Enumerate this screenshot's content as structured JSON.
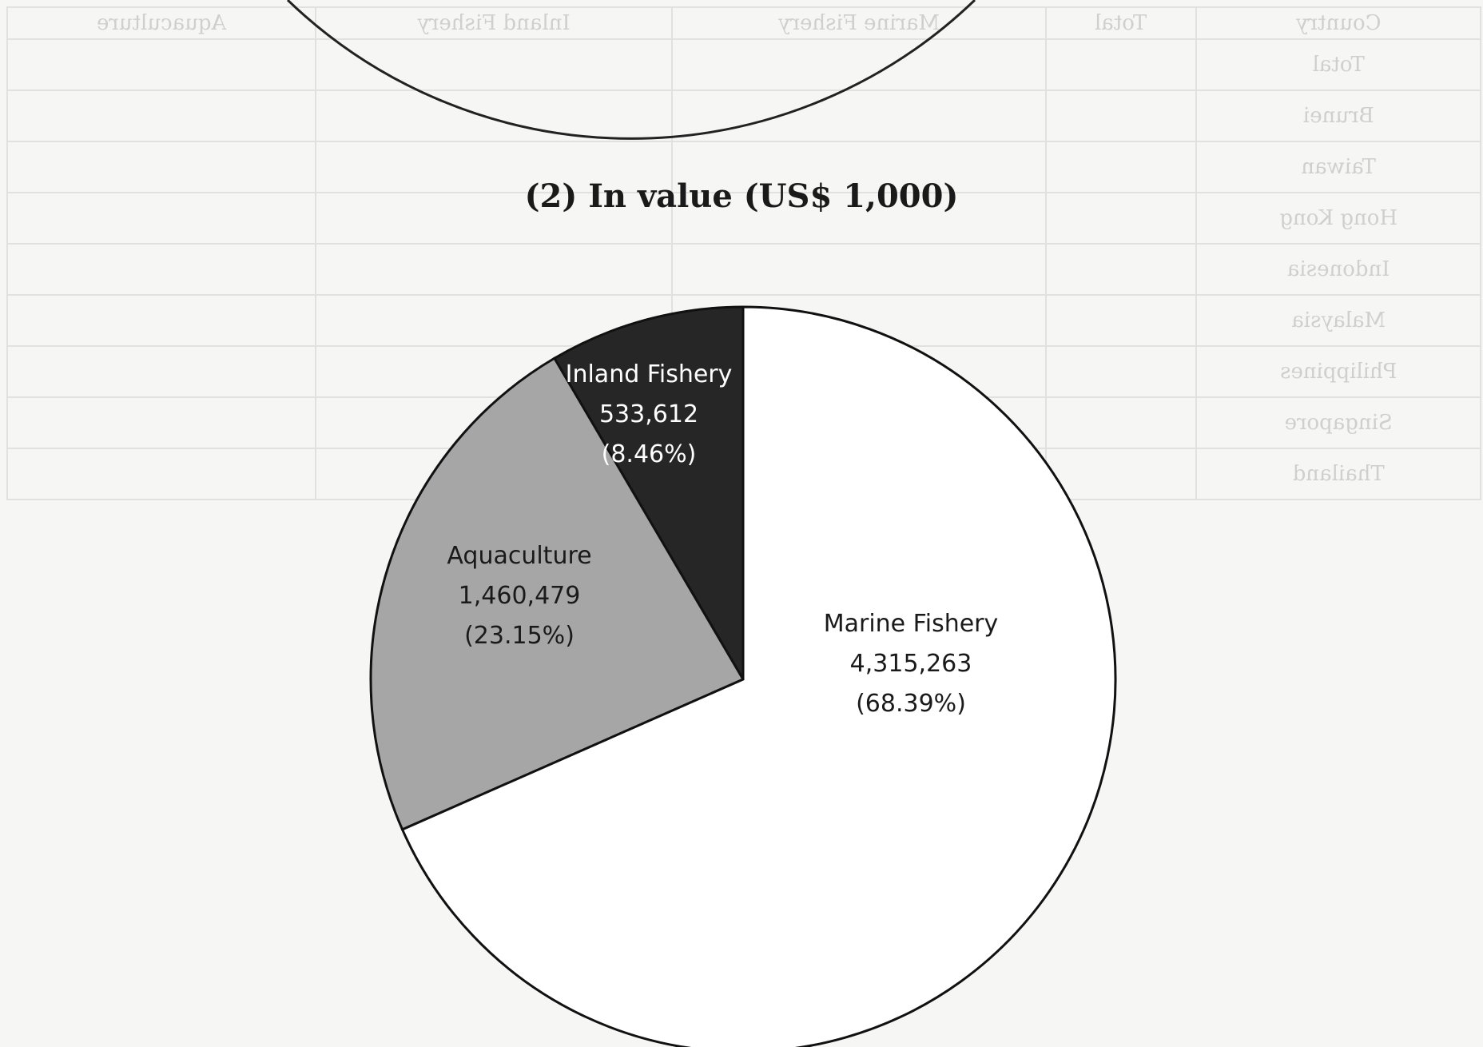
{
  "chart_data": {
    "type": "pie",
    "title": "(2)  In value (US$ 1,000)",
    "slices": [
      {
        "label": "Marine Fishery",
        "value": 4315263,
        "value_text": "4,315,263",
        "percent_text": "(68.39%)",
        "color": "#ffffff",
        "text_color": "#1a1a1a"
      },
      {
        "label": "Aquaculture",
        "value": 1460479,
        "value_text": "1,460,479",
        "percent_text": "(23.15%)",
        "color": "#a6a6a6",
        "text_color": "#1a1a1a"
      },
      {
        "label": "Inland Fishery",
        "value": 533612,
        "value_text": "533,612",
        "percent_text": "(8.46%)",
        "color": "#262626",
        "text_color": "#ffffff"
      }
    ]
  },
  "background_table": {
    "headers": [
      "Country",
      "Total",
      "Marine Fishery",
      "Inland Fishery",
      "Aquaculture"
    ],
    "rows": [
      [
        "Total",
        "",
        "",
        "",
        ""
      ],
      [
        "Brunei",
        "",
        "",
        "",
        ""
      ],
      [
        "Taiwan",
        "",
        "",
        "",
        ""
      ],
      [
        "Hong Kong",
        "",
        "",
        "",
        ""
      ],
      [
        "Indonesia",
        "",
        "",
        "",
        ""
      ],
      [
        "Malaysia",
        "",
        "",
        "",
        ""
      ],
      [
        "Philippines",
        "",
        "",
        "",
        ""
      ],
      [
        "Singapore",
        "",
        "",
        "",
        ""
      ],
      [
        "Thailand",
        "",
        "",
        "",
        ""
      ]
    ]
  }
}
